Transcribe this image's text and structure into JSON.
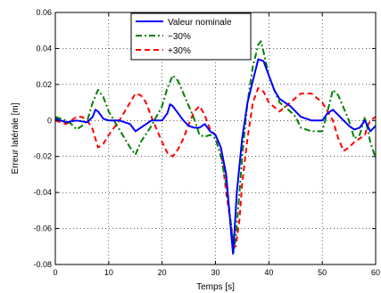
{
  "chart_data": {
    "type": "line",
    "title": "",
    "xlabel": "Temps [s]",
    "ylabel": "Erreur latérale [m]",
    "xlim": [
      0,
      60
    ],
    "ylim": [
      -0.08,
      0.06
    ],
    "x_ticks": [
      0,
      10,
      20,
      30,
      40,
      50,
      60
    ],
    "x_tick_labels": [
      "0",
      "10",
      "20",
      "30",
      "40",
      "50",
      "60"
    ],
    "y_ticks": [
      -0.08,
      -0.06,
      -0.04,
      -0.02,
      0,
      0.02,
      0.04,
      0.06
    ],
    "y_tick_labels": [
      "-0.08",
      "-0.06",
      "-0.04",
      "-0.02",
      "0",
      "0.02",
      "0.04",
      "0.06"
    ],
    "grid": true,
    "legend_position": "top-center",
    "series": [
      {
        "name": "Valeur nominale",
        "color": "#0000ff",
        "style": "solid",
        "x": [
          0,
          2,
          4,
          6,
          7,
          7.5,
          8,
          9,
          10,
          12,
          14,
          15,
          16,
          18,
          20,
          21,
          21.5,
          22,
          23,
          24,
          25,
          26,
          27,
          28,
          29,
          30,
          31,
          32,
          33,
          33.3,
          33.6,
          34,
          35,
          36,
          37,
          38,
          39,
          40,
          41,
          42,
          43,
          44,
          45,
          46,
          48,
          50,
          51,
          52,
          53,
          54,
          55,
          56,
          57,
          58,
          59,
          60
        ],
        "y": [
          0.001,
          -0.001,
          0.0,
          -0.001,
          0.002,
          0.006,
          0.005,
          0.001,
          0.0,
          0.0,
          -0.002,
          -0.006,
          -0.004,
          0.0,
          0.0,
          0.004,
          0.009,
          0.008,
          0.004,
          0.0,
          -0.003,
          -0.004,
          -0.004,
          -0.002,
          -0.006,
          -0.008,
          -0.015,
          -0.03,
          -0.065,
          -0.074,
          -0.06,
          -0.04,
          -0.01,
          0.01,
          0.022,
          0.034,
          0.033,
          0.025,
          0.017,
          0.012,
          0.01,
          0.008,
          0.005,
          0.002,
          0.0,
          0.0,
          0.004,
          0.006,
          0.003,
          0.0,
          -0.003,
          -0.005,
          -0.004,
          0.0,
          -0.006,
          -0.003
        ]
      },
      {
        "name": "−30%",
        "color": "#008000",
        "style": "dashdot",
        "x": [
          0,
          2,
          3,
          4,
          5,
          6,
          7,
          8,
          9,
          10,
          12,
          14,
          15,
          16,
          18,
          20,
          21,
          22,
          23,
          24,
          25,
          26,
          27,
          28,
          29,
          30,
          31,
          32,
          33,
          33.4,
          33.8,
          34.5,
          35,
          36,
          37,
          38,
          38.5,
          39,
          40,
          41,
          42,
          44,
          45,
          46,
          48,
          50,
          51,
          52,
          53,
          54,
          55,
          56,
          57,
          58,
          59,
          60
        ],
        "y": [
          0.002,
          0.0,
          -0.002,
          -0.005,
          -0.003,
          0.0,
          0.01,
          0.017,
          0.013,
          0.005,
          -0.005,
          -0.015,
          -0.019,
          -0.012,
          -0.003,
          0.008,
          0.018,
          0.025,
          0.022,
          0.015,
          0.008,
          0.001,
          -0.008,
          -0.009,
          -0.008,
          -0.01,
          -0.02,
          -0.035,
          -0.06,
          -0.073,
          -0.065,
          -0.04,
          -0.02,
          0.01,
          0.03,
          0.042,
          0.044,
          0.038,
          0.025,
          0.017,
          0.01,
          0.005,
          0.002,
          -0.004,
          -0.006,
          -0.006,
          0.005,
          0.017,
          0.014,
          0.007,
          0.0,
          -0.01,
          -0.008,
          0.002,
          -0.012,
          -0.021
        ]
      },
      {
        "name": "+30%",
        "color": "#ff0000",
        "style": "dashed",
        "x": [
          0,
          2,
          4,
          5,
          6,
          7,
          8,
          9,
          10,
          12,
          13,
          14,
          15,
          16,
          17,
          18,
          19,
          20,
          21,
          22,
          23,
          24,
          25,
          26,
          27,
          28,
          29,
          30,
          31,
          32,
          33,
          33.4,
          33.8,
          34.5,
          35,
          36,
          37,
          38,
          39,
          40,
          42,
          44,
          46,
          48,
          50,
          52,
          53,
          54,
          55,
          56,
          57,
          58,
          58.5,
          59,
          60
        ],
        "y": [
          0.0,
          -0.002,
          0.002,
          0.002,
          0.0,
          -0.005,
          -0.015,
          -0.013,
          -0.008,
          0.0,
          0.005,
          0.01,
          0.015,
          0.014,
          0.01,
          0.002,
          -0.005,
          -0.012,
          -0.018,
          -0.02,
          -0.016,
          -0.01,
          -0.002,
          0.005,
          0.008,
          0.003,
          -0.005,
          -0.008,
          -0.015,
          -0.04,
          -0.06,
          -0.07,
          -0.07,
          -0.055,
          -0.035,
          -0.01,
          0.01,
          0.018,
          0.016,
          0.01,
          0.005,
          0.01,
          0.015,
          0.015,
          0.01,
          0.0,
          -0.01,
          -0.017,
          -0.015,
          -0.012,
          -0.01,
          -0.008,
          -0.003,
          0.0,
          0.002
        ]
      }
    ]
  }
}
